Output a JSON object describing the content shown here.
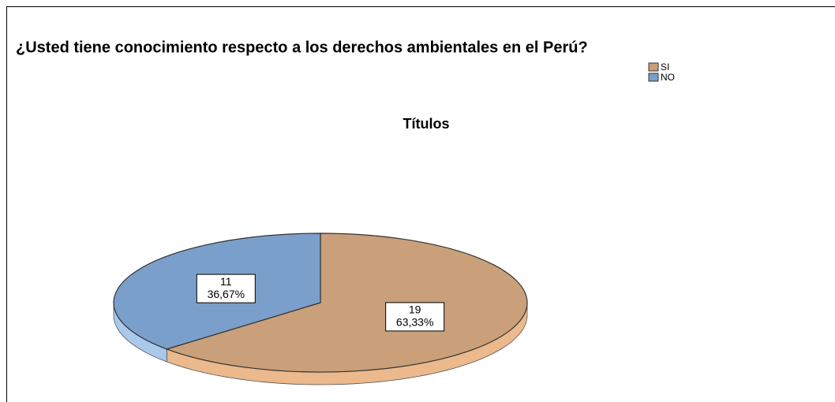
{
  "chart_data": {
    "type": "pie",
    "title": "¿Usted tiene conocimiento respecto a los derechos ambientales en el Perú?",
    "subtitle": "Títulos",
    "categories": [
      "SI",
      "NO"
    ],
    "values": [
      19,
      11
    ],
    "percentages": [
      63.33,
      36.67
    ],
    "percentage_labels": [
      "63,33%",
      "36,67%"
    ],
    "colors": [
      "#c9a07a",
      "#7a9fca"
    ],
    "side_colors": [
      "#ebb98c",
      "#a9c8ea"
    ],
    "legend": "top-right"
  }
}
